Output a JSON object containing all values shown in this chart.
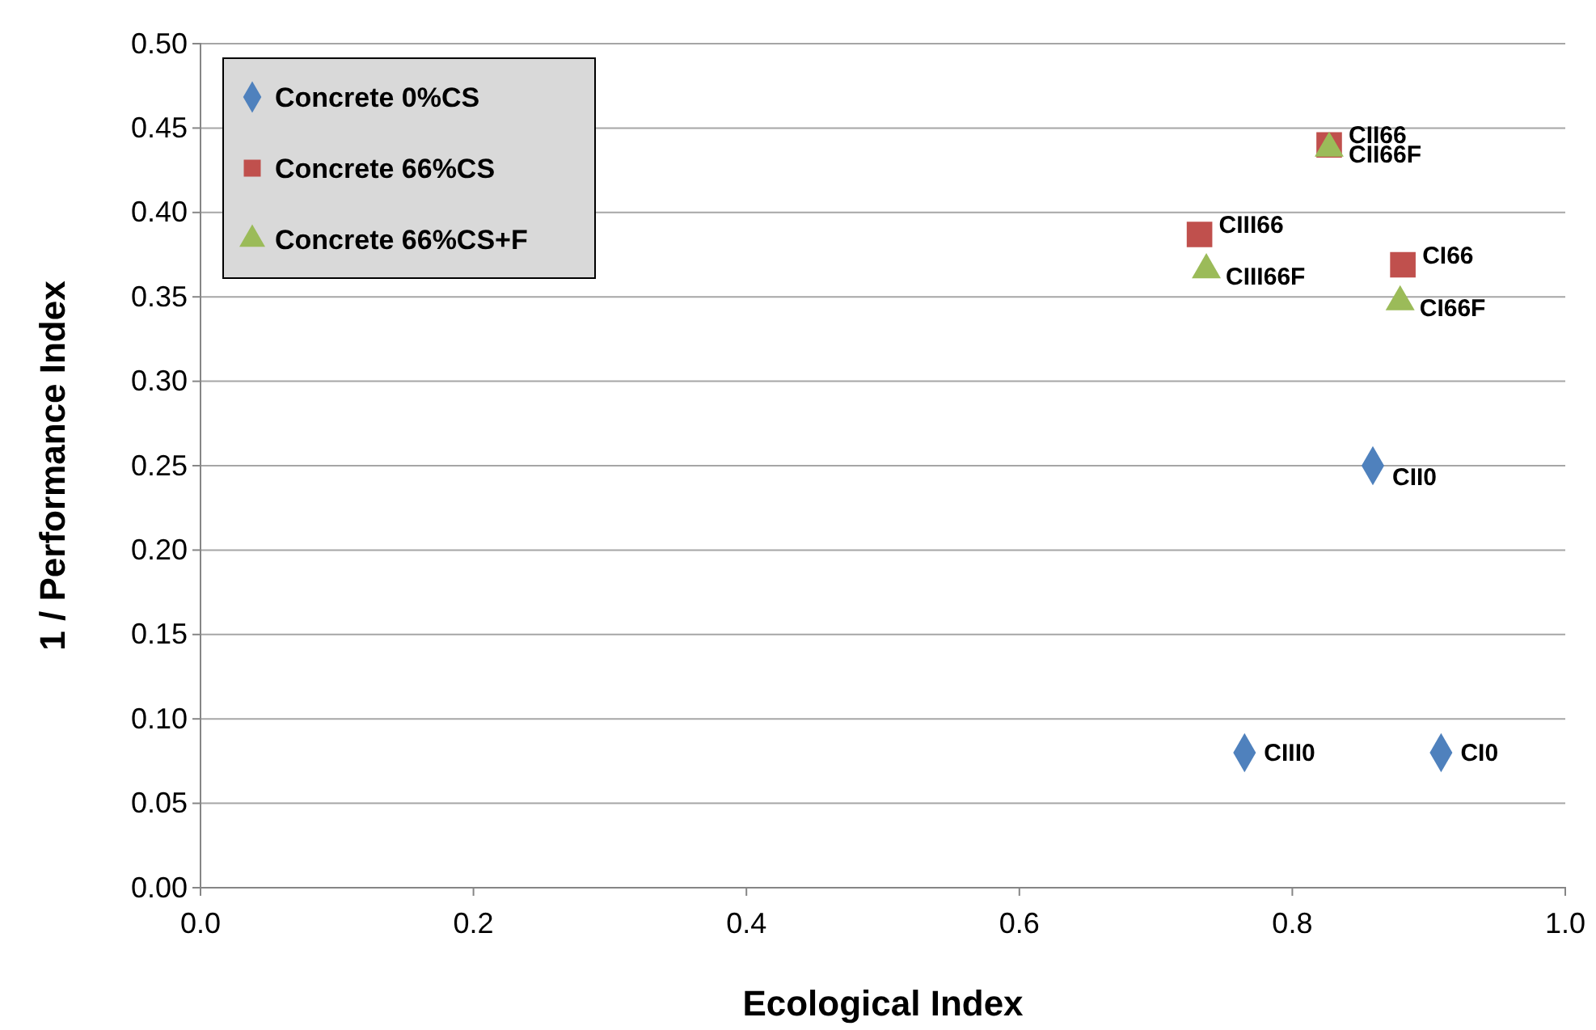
{
  "chart_data": {
    "type": "scatter",
    "xlabel": "Ecological Index",
    "ylabel": "1 / Performance Index",
    "xlim": [
      0,
      1
    ],
    "xticks": [
      {
        "value": 0,
        "label": "0.0"
      },
      {
        "value": 0.2,
        "label": "0.2"
      },
      {
        "value": 0.4,
        "label": "0.4"
      },
      {
        "value": 0.6,
        "label": "0.6"
      },
      {
        "value": 0.8,
        "label": "0.8"
      },
      {
        "value": 1,
        "label": "1.0"
      }
    ],
    "ylim": [
      0,
      0.5
    ],
    "yticks": [
      {
        "value": 0,
        "label": "0.00"
      },
      {
        "value": 0.05,
        "label": "0.05"
      },
      {
        "value": 0.1,
        "label": "0.10"
      },
      {
        "value": 0.15,
        "label": "0.15"
      },
      {
        "value": 0.2,
        "label": "0.20"
      },
      {
        "value": 0.25,
        "label": "0.25"
      },
      {
        "value": 0.3,
        "label": "0.30"
      },
      {
        "value": 0.35,
        "label": "0.35"
      },
      {
        "value": 0.4,
        "label": "0.40"
      },
      {
        "value": 0.45,
        "label": "0.45"
      },
      {
        "value": 0.5,
        "label": "0.50"
      }
    ],
    "grid": "y",
    "legend": "top left",
    "series": [
      {
        "name": "Concrete 0%CS",
        "color": "#4f81bd",
        "marker": "diamond",
        "x": [
          0.909,
          0.765,
          0.859
        ],
        "values": [
          0.08,
          0.08,
          0.25
        ]
      },
      {
        "name": "Concrete 66%CS",
        "color": "#c0504d",
        "marker": "square",
        "x": [
          0.827,
          0.732,
          0.881
        ],
        "values": [
          0.44,
          0.387,
          0.369
        ]
      },
      {
        "name": "Concrete 66%CS+F",
        "color": "#9bbb59",
        "marker": "triangle",
        "x": [
          0.827,
          0.737,
          0.879
        ],
        "values": [
          0.438,
          0.366,
          0.347
        ]
      }
    ],
    "annotations": [
      {
        "text": "CI0",
        "x": 0.909,
        "y": 0.08
      },
      {
        "text": "CIII0",
        "x": 0.765,
        "y": 0.08
      },
      {
        "text": "CII0",
        "x": 0.859,
        "y": 0.25
      },
      {
        "text": "CII66",
        "x": 0.827,
        "y": 0.44
      },
      {
        "text": "CIII66",
        "x": 0.732,
        "y": 0.387
      },
      {
        "text": "CI66",
        "x": 0.881,
        "y": 0.369
      },
      {
        "text": "CII66F",
        "x": 0.827,
        "y": 0.438
      },
      {
        "text": "CIII66F",
        "x": 0.737,
        "y": 0.366
      },
      {
        "text": "CI66F",
        "x": 0.879,
        "y": 0.347
      }
    ]
  }
}
